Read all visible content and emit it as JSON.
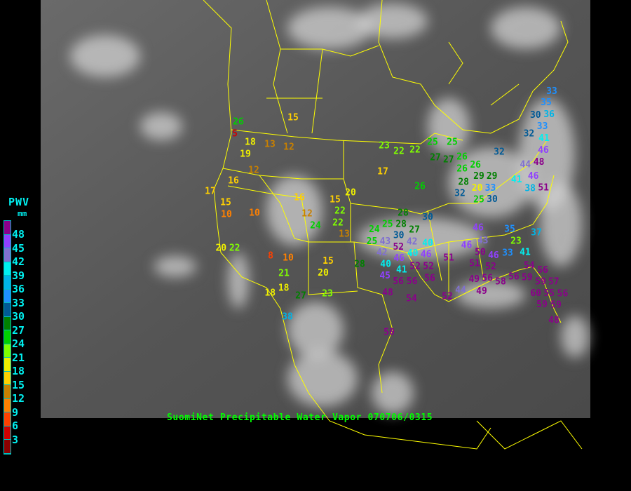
{
  "caption": "SuomiNet Precipitable Water Vapor 070706/0315",
  "legend": {
    "title": "PWV",
    "unit": "mm",
    "labels": [
      "48",
      "45",
      "42",
      "39",
      "36",
      "33",
      "30",
      "27",
      "24",
      "21",
      "18",
      "15",
      "12",
      "9",
      "6",
      "3"
    ],
    "band_colors": [
      "#8b008b",
      "#9040ff",
      "#8070d0",
      "#00f0f0",
      "#00b4e6",
      "#1e90ff",
      "#005a96",
      "#008000",
      "#00d000",
      "#80ff00",
      "#f0f000",
      "#ffd000",
      "#c88000",
      "#ff8000",
      "#ff4000",
      "#d00000",
      "#8b0000"
    ]
  },
  "colors": {
    "background": "#000000",
    "map_gray": "#5a5a5a",
    "borders": "#ffff00",
    "caption": "#00ff00",
    "legend_text": "#00f0f0"
  },
  "stations": [
    "26",
    "5",
    "18",
    "19",
    "13",
    "12",
    "15",
    "12",
    "16",
    "17",
    "15",
    "10",
    "10",
    "16",
    "12",
    "24",
    "15",
    "22",
    "22",
    "13",
    "20",
    "20",
    "22",
    "8",
    "10",
    "15",
    "20",
    "21",
    "18",
    "18",
    "27",
    "23",
    "38",
    "28",
    "23",
    "22",
    "22",
    "17",
    "26",
    "30",
    "25",
    "25",
    "27",
    "27",
    "26",
    "26",
    "26",
    "28",
    "29",
    "29",
    "32",
    "20",
    "33",
    "25",
    "30",
    "32",
    "33",
    "35",
    "36",
    "30",
    "33",
    "32",
    "41",
    "46",
    "48",
    "44",
    "41",
    "46",
    "38",
    "51",
    "46",
    "35",
    "37",
    "23",
    "33",
    "41",
    "28",
    "27",
    "24",
    "25",
    "28",
    "25",
    "30",
    "40",
    "46",
    "43",
    "43",
    "52",
    "42",
    "40",
    "42",
    "40",
    "41",
    "46",
    "46",
    "51",
    "50",
    "51",
    "46",
    "52",
    "52",
    "52",
    "45",
    "56",
    "56",
    "56",
    "56",
    "58",
    "49",
    "49",
    "56",
    "59",
    "56",
    "59",
    "54",
    "57",
    "60",
    "55",
    "56",
    "48",
    "54",
    "52",
    "44",
    "59",
    "59",
    "48",
    "50"
  ]
}
